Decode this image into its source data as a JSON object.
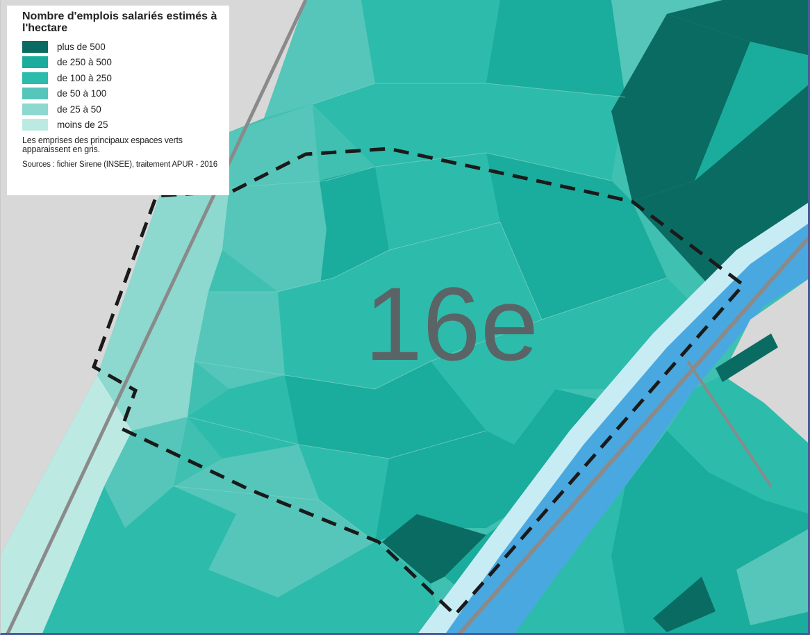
{
  "legend": {
    "title": "Nombre d'emplois salariés estimés à l'hectare",
    "classes": [
      {
        "label": "plus de 500",
        "color": "#0a6b62"
      },
      {
        "label": "de 250 à 500",
        "color": "#1aac9c"
      },
      {
        "label": "de 100 à 250",
        "color": "#2dbbab"
      },
      {
        "label": "de 50 à 100",
        "color": "#55c6b9"
      },
      {
        "label": "de 25 à 50",
        "color": "#8dd8cf"
      },
      {
        "label": "moins de 25",
        "color": "#bde9e3"
      }
    ],
    "note": "Les emprises des principaux espaces verts apparaissent en gris.",
    "source": "Sources : fichier Sirene (INSEE), traitement APUR - 2016"
  },
  "map": {
    "district_label": "16e",
    "colors": {
      "green_space": "#d8d8d8",
      "river": "#4aa8e0",
      "river_bank": "#c8ecf4",
      "road": "#8a8a8a",
      "boundary": "#1a1a1a"
    }
  }
}
